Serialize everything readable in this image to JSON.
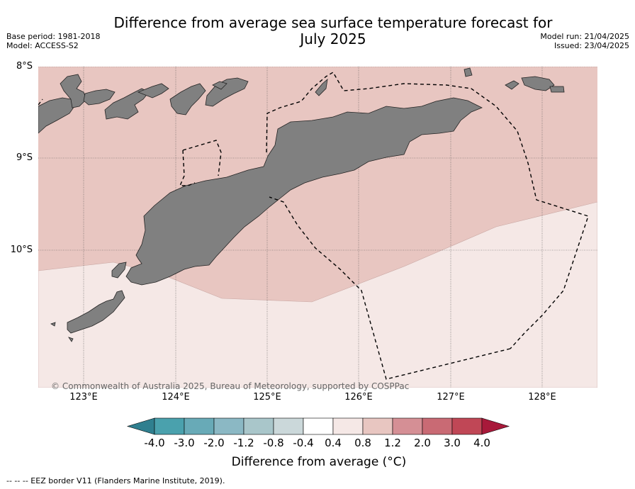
{
  "header": {
    "title_line1": "Difference from average sea surface temperature forecast for",
    "title_line2": "July 2025",
    "base_period": "Base period: 1981-2018",
    "model": "Model: ACCESS-S2",
    "model_run": "Model run: 21/04/2025",
    "issued": "Issued: 23/04/2025"
  },
  "map": {
    "lat_labels": [
      "8°S",
      "9°S",
      "10°S"
    ],
    "lon_labels": [
      "123°E",
      "124°E",
      "125°E",
      "126°E",
      "127°E",
      "128°E"
    ],
    "land_color": "#808080",
    "anomaly_0_4_to_0_8_color": "#f5e8e6",
    "anomaly_0_8_to_1_2_color": "#e8c6c1",
    "copyright": "© Commonwealth of Australia 2025, Bureau of Meteorology, supported by COSPPac"
  },
  "colorbar": {
    "ticks": [
      "-4.0",
      "-3.0",
      "-2.0",
      "-1.2",
      "-0.8",
      "-0.4",
      "0.4",
      "0.8",
      "1.2",
      "2.0",
      "3.0",
      "4.0"
    ],
    "colors": [
      "#2f7f8f",
      "#4aa1ad",
      "#68aab7",
      "#8bb8c4",
      "#a9c6ca",
      "#cbd8da",
      "#ffffff",
      "#f5e8e6",
      "#e8c6c1",
      "#d58f95",
      "#c96a74",
      "#c04756",
      "#a8193a"
    ],
    "title": "Difference from average (°C)"
  },
  "legend": {
    "eez_label": "--  --  -- EEZ border V11 (Flanders Marine Institute, 2019)."
  }
}
